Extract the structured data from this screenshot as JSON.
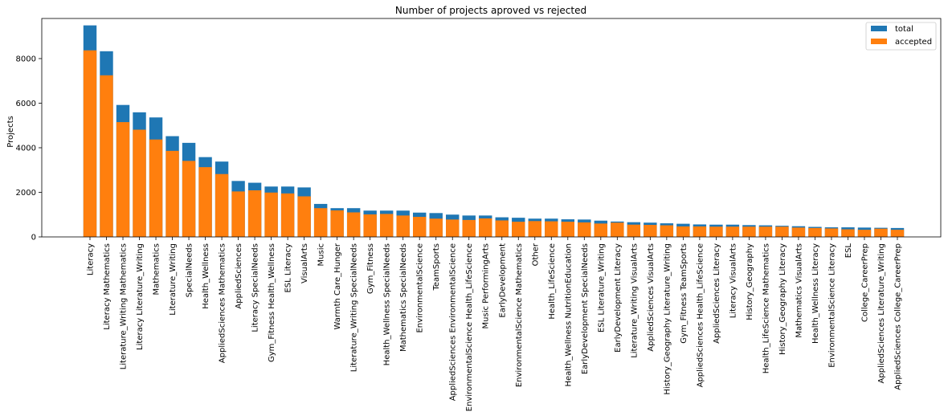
{
  "chart_data": {
    "type": "bar",
    "title": "Number of projects aproved vs rejected",
    "xlabel": "",
    "ylabel": "Projects",
    "ylim": [
      0,
      9800
    ],
    "yticks": [
      0,
      2000,
      4000,
      6000,
      8000
    ],
    "grid": false,
    "legend_position": "top-right",
    "categories": [
      "Literacy",
      "Literacy Mathematics",
      "Literature_Writing Mathematics",
      "Literacy Literature_Writing",
      "Mathematics",
      "Literature_Writing",
      "SpecialNeeds",
      "Health_Wellness",
      "AppliedSciences Mathematics",
      "AppliedSciences",
      "Literacy SpecialNeeds",
      "Gym_Fitness Health_Wellness",
      "ESL Literacy",
      "VisualArts",
      "Music",
      "Warmth Care_Hunger",
      "Literature_Writing SpecialNeeds",
      "Gym_Fitness",
      "Health_Wellness SpecialNeeds",
      "Mathematics SpecialNeeds",
      "EnvironmentalScience",
      "TeamSports",
      "AppliedSciences EnvironmentalScience",
      "EnvironmentalScience Health_LifeScience",
      "Music PerformingArts",
      "EarlyDevelopment",
      "EnvironmentalScience Mathematics",
      "Other",
      "Health_LifeScience",
      "Health_Wellness NutritionEducation",
      "EarlyDevelopment SpecialNeeds",
      "ESL Literature_Writing",
      "EarlyDevelopment Literacy",
      "Literature_Writing VisualArts",
      "AppliedSciences VisualArts",
      "History_Geography Literature_Writing",
      "Gym_Fitness TeamSports",
      "AppliedSciences Health_LifeScience",
      "AppliedSciences Literacy",
      "Literacy VisualArts",
      "History_Geography",
      "Health_LifeScience Mathematics",
      "History_Geography Literacy",
      "Mathematics VisualArts",
      "Health_Wellness Literacy",
      "EnvironmentalScience Literacy",
      "ESL",
      "College_CareerPrep",
      "AppliedSciences Literature_Writing",
      "AppliedSciences College_CareerPrep"
    ],
    "series": [
      {
        "name": "total",
        "color": "#1f77b4",
        "values": [
          9490,
          8330,
          5920,
          5590,
          5360,
          4520,
          4220,
          3580,
          3380,
          2510,
          2430,
          2260,
          2260,
          2220,
          1480,
          1290,
          1290,
          1180,
          1180,
          1180,
          1090,
          1070,
          1000,
          960,
          960,
          880,
          860,
          820,
          820,
          790,
          780,
          730,
          690,
          660,
          640,
          610,
          590,
          560,
          550,
          550,
          530,
          520,
          500,
          480,
          450,
          430,
          430,
          420,
          410,
          400
        ]
      },
      {
        "name": "accepted",
        "color": "#ff7f0e",
        "values": [
          8370,
          7250,
          5150,
          4810,
          4370,
          3860,
          3410,
          3130,
          2820,
          2040,
          2090,
          1990,
          1950,
          1820,
          1290,
          1190,
          1100,
          1010,
          1030,
          960,
          900,
          820,
          780,
          760,
          830,
          740,
          680,
          710,
          700,
          680,
          650,
          600,
          640,
          550,
          540,
          520,
          470,
          470,
          460,
          460,
          460,
          460,
          460,
          420,
          400,
          380,
          340,
          320,
          370,
          320
        ]
      }
    ]
  }
}
